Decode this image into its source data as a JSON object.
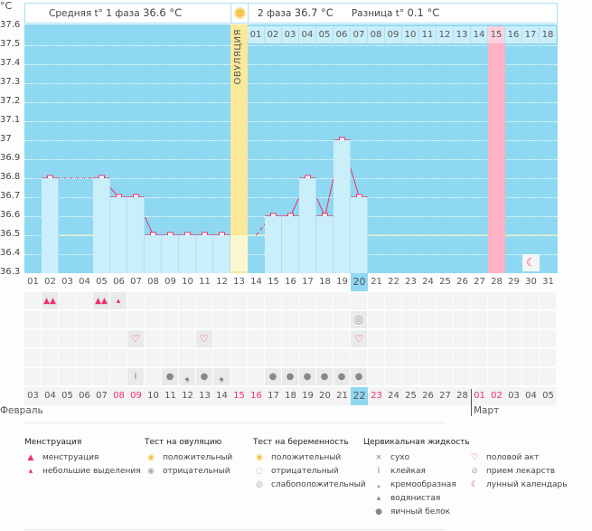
{
  "unit": "°C",
  "header": {
    "phase1": "Средняя t° 1 фаза",
    "phase1_value": "36.6 °C",
    "phase2": "2 фаза",
    "phase2_value": "36.7 °C",
    "diff": "Разница t°",
    "diff_value": "0.1 °C"
  },
  "ovulation_label": "ОВУЛЯЦИЯ",
  "colors": {
    "plot_bg": "#8fd8f2",
    "bar": "#cbeefb",
    "line": "#f0306a",
    "ovulation": "#fbe89a",
    "highlight": "#ffb1c6",
    "coverline": "#f8f0a0"
  },
  "chart_data": {
    "type": "bar+line",
    "ylabel": "°C",
    "ylim": [
      36.3,
      37.6
    ],
    "yticks": [
      "37.6",
      "37.5",
      "37.4",
      "37.3",
      "37.2",
      "37.1",
      "37",
      "36.9",
      "36.8",
      "36.7",
      "36.6",
      "36.5",
      "36.4",
      "36.3"
    ],
    "cycle_days": [
      "01",
      "02",
      "03",
      "04",
      "05",
      "06",
      "07",
      "08",
      "09",
      "10",
      "11",
      "12",
      "13",
      "14",
      "15",
      "16",
      "17",
      "18",
      "19",
      "20",
      "21",
      "22",
      "23",
      "24",
      "25",
      "26",
      "27",
      "28",
      "29",
      "30",
      "31"
    ],
    "temperatures": [
      null,
      36.8,
      null,
      null,
      36.8,
      36.7,
      36.7,
      36.5,
      36.5,
      36.5,
      36.5,
      36.5,
      36.5,
      null,
      36.6,
      36.6,
      36.8,
      36.6,
      37.0,
      36.7,
      null,
      null,
      null,
      null,
      null,
      null,
      null,
      null,
      null,
      null,
      null
    ],
    "coverline": 36.5,
    "ovulation_day": 13,
    "current_day": 20,
    "phase2_days": [
      "01",
      "02",
      "03",
      "04",
      "05",
      "06",
      "07",
      "08",
      "09",
      "10",
      "11",
      "12",
      "13",
      "14",
      "15",
      "16",
      "17",
      "18"
    ],
    "phase2_highlight": "15"
  },
  "dates": [
    "03",
    "04",
    "05",
    "06",
    "07",
    "08",
    "09",
    "10",
    "11",
    "12",
    "13",
    "14",
    "15",
    "16",
    "17",
    "18",
    "19",
    "20",
    "21",
    "22",
    "23",
    "24",
    "25",
    "26",
    "27",
    "28",
    "01",
    "02",
    "03",
    "04",
    "05"
  ],
  "weekend_dates": [
    5,
    6,
    12,
    13,
    20,
    26,
    27
  ],
  "months": [
    "Февраль",
    "Март"
  ],
  "rows": {
    "menstruation": {
      "2": "heavy",
      "5": "heavy",
      "6": "light"
    },
    "tests": {
      "20": "pregnancy-weak"
    },
    "sex": {
      "7": "heart",
      "11": "heart",
      "20": "heart"
    },
    "medication": {},
    "cervical": {
      "7": "sticky",
      "9": "egg-white",
      "10": "creamy",
      "11": "egg-white",
      "12": "creamy",
      "15": "egg-white",
      "16": "egg-white",
      "17": "egg-white",
      "18": "egg-white",
      "19": "egg-white",
      "20": "egg-white"
    }
  },
  "moon_day": 30,
  "legend": {
    "menstruation": {
      "title": "Менструация",
      "items": [
        "менструация",
        "небольшие выделения"
      ]
    },
    "ovulation_test": {
      "title": "Тест на овуляцию",
      "items": [
        "положительный",
        "отрицательный"
      ]
    },
    "pregnancy_test": {
      "title": "Тест на беременность",
      "items": [
        "положительный",
        "отрицательный",
        "слабоположительный"
      ]
    },
    "cervical": {
      "title": "Цервикальная жидкость",
      "items": [
        "сухо",
        "клейкая",
        "кремообразная",
        "водянистая",
        "яичный белок"
      ]
    },
    "other": {
      "items": [
        "половой акт",
        "прием лекарств",
        "лунный календарь"
      ]
    }
  }
}
